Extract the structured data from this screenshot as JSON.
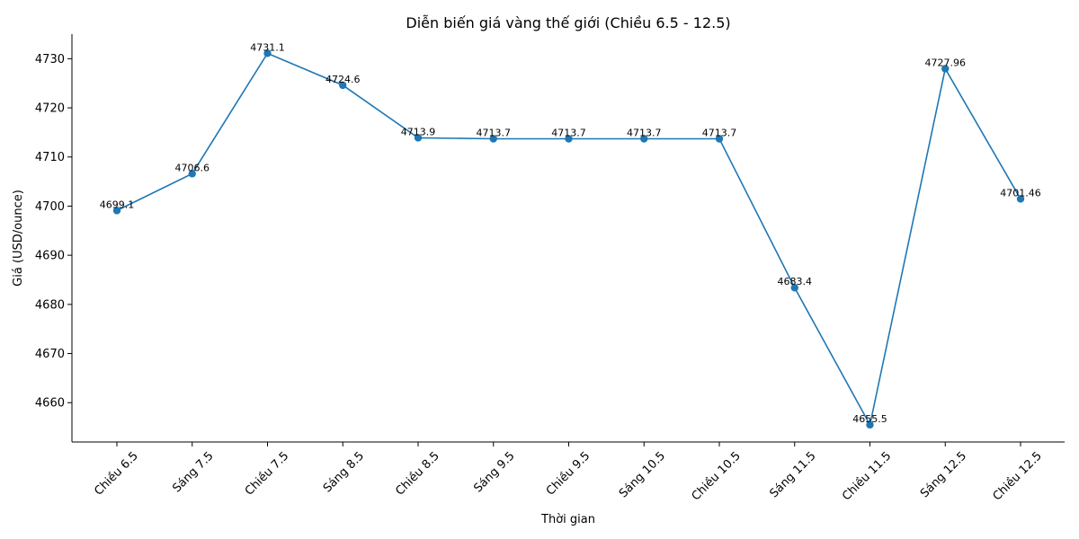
{
  "chart_data": {
    "type": "line",
    "title": "Diễn biến giá vàng thế giới (Chiều 6.5 - 12.5)",
    "xlabel": "Thời gian",
    "ylabel": "Giá (USD/ounce)",
    "categories": [
      "Chiều 6.5",
      "Sáng 7.5",
      "Chiều 7.5",
      "Sáng 8.5",
      "Chiều 8.5",
      "Sáng 9.5",
      "Chiều 9.5",
      "Sáng 10.5",
      "Chiều 10.5",
      "Sáng 11.5",
      "Chiều 11.5",
      "Sáng 12.5",
      "Chiều 12.5"
    ],
    "values": [
      4699.1,
      4706.6,
      4731.1,
      4724.6,
      4713.9,
      4713.7,
      4713.7,
      4713.7,
      4713.7,
      4683.4,
      4655.5,
      4727.96,
      4701.46
    ],
    "data_labels": [
      "4699.1",
      "4706.6",
      "4731.1",
      "4724.6",
      "4713.9",
      "4713.7",
      "4713.7",
      "4713.7",
      "4713.7",
      "4683.4",
      "4655.5",
      "4727.96",
      "4701.46"
    ],
    "ylim": [
      4652,
      4735
    ],
    "yticks": [
      4660,
      4670,
      4680,
      4690,
      4700,
      4710,
      4720,
      4730
    ],
    "grid": false,
    "legend": "none",
    "line_color": "#1f77b4",
    "marker_color": "#1f77b4",
    "x_tick_rotation_deg": 45
  }
}
